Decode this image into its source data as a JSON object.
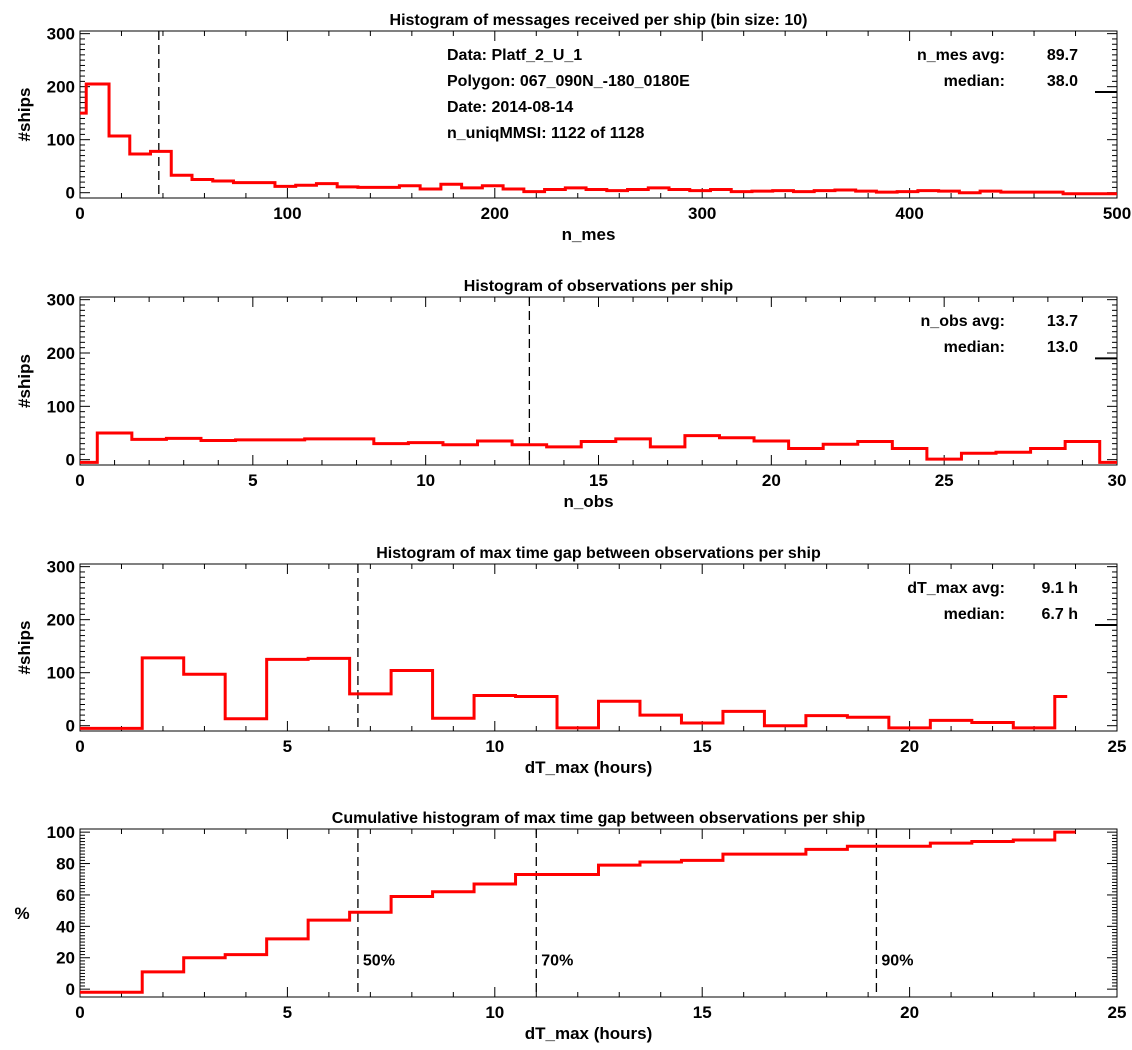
{
  "chart_data": [
    {
      "type": "line",
      "title": "Histogram of messages received per ship (bin size: 10)",
      "xlabel": "n_mes",
      "ylabel": "#ships",
      "xlim": [
        0,
        500
      ],
      "ylim": [
        -10,
        305
      ],
      "xticks": [
        0,
        100,
        200,
        300,
        400,
        500
      ],
      "yticks": [
        0,
        100,
        200,
        300
      ],
      "series": [
        {
          "color": "#ff0000",
          "steps": [
            [
              0,
              150
            ],
            [
              3,
              205
            ],
            [
              14,
              107
            ],
            [
              24,
              73
            ],
            [
              34,
              78
            ],
            [
              44,
              33
            ],
            [
              54,
              25
            ],
            [
              64,
              22
            ],
            [
              74,
              19
            ],
            [
              84,
              19
            ],
            [
              94,
              12
            ],
            [
              104,
              14
            ],
            [
              114,
              17
            ],
            [
              124,
              11
            ],
            [
              134,
              10
            ],
            [
              144,
              10
            ],
            [
              154,
              13
            ],
            [
              164,
              7
            ],
            [
              174,
              16
            ],
            [
              184,
              9
            ],
            [
              194,
              13
            ],
            [
              204,
              7
            ],
            [
              214,
              2
            ],
            [
              224,
              6
            ],
            [
              234,
              9
            ],
            [
              244,
              6
            ],
            [
              254,
              4
            ],
            [
              264,
              6
            ],
            [
              274,
              9
            ],
            [
              284,
              6
            ],
            [
              294,
              4
            ],
            [
              304,
              6
            ],
            [
              314,
              2
            ],
            [
              324,
              3
            ],
            [
              334,
              4
            ],
            [
              344,
              2
            ],
            [
              354,
              4
            ],
            [
              364,
              5
            ],
            [
              374,
              3
            ],
            [
              384,
              1
            ],
            [
              394,
              2
            ],
            [
              404,
              4
            ],
            [
              414,
              3
            ],
            [
              424,
              0
            ],
            [
              434,
              3
            ],
            [
              444,
              1
            ],
            [
              454,
              1
            ],
            [
              464,
              1
            ],
            [
              474,
              -2
            ],
            [
              500,
              -2
            ]
          ]
        }
      ],
      "vlines": [
        {
          "x": 38
        }
      ],
      "annotations_left": [
        "Data: Platf_2_U_1",
        "Polygon: 067_090N_-180_0180E",
        "Date: 2014-08-14",
        "n_uniqMMSI:  1122 of 1128"
      ],
      "stats": [
        {
          "label": "n_mes avg:",
          "value": "89.7"
        },
        {
          "label": "median:",
          "value": "38.0"
        }
      ],
      "median_marker_y": 200
    },
    {
      "type": "line",
      "title": "Histogram of observations per ship",
      "xlabel": "n_obs",
      "ylabel": "#ships",
      "xlim": [
        0,
        30
      ],
      "ylim": [
        -10,
        305
      ],
      "xticks": [
        0,
        5,
        10,
        15,
        20,
        25,
        30
      ],
      "yticks": [
        0,
        100,
        200,
        300
      ],
      "series": [
        {
          "color": "#ff0000",
          "steps": [
            [
              0,
              -5
            ],
            [
              0.5,
              50
            ],
            [
              1.5,
              38
            ],
            [
              2.5,
              40
            ],
            [
              3.5,
              36
            ],
            [
              4.5,
              37
            ],
            [
              5.5,
              37
            ],
            [
              6.5,
              39
            ],
            [
              7.5,
              39
            ],
            [
              8.5,
              30
            ],
            [
              9.5,
              32
            ],
            [
              10.5,
              28
            ],
            [
              11.5,
              35
            ],
            [
              12.5,
              28
            ],
            [
              13.5,
              24
            ],
            [
              14.5,
              34
            ],
            [
              15.5,
              39
            ],
            [
              16.5,
              24
            ],
            [
              17.5,
              45
            ],
            [
              18.5,
              41
            ],
            [
              19.5,
              35
            ],
            [
              20.5,
              21
            ],
            [
              21.5,
              29
            ],
            [
              22.5,
              34
            ],
            [
              23.5,
              21
            ],
            [
              24.5,
              1
            ],
            [
              25.5,
              12
            ],
            [
              26.5,
              14
            ],
            [
              27.5,
              21
            ],
            [
              28.5,
              34
            ],
            [
              29.5,
              -5
            ],
            [
              30,
              -5
            ]
          ]
        }
      ],
      "vlines": [
        {
          "x": 13.0
        }
      ],
      "stats": [
        {
          "label": "n_obs avg:",
          "value": "13.7"
        },
        {
          "label": "median:",
          "value": "13.0"
        }
      ],
      "median_marker_y": 200
    },
    {
      "type": "line",
      "title": "Histogram of max time gap between observations per ship",
      "xlabel": "dT_max (hours)",
      "ylabel": "#ships",
      "xlim": [
        0,
        25
      ],
      "ylim": [
        -10,
        305
      ],
      "xticks": [
        0,
        5,
        10,
        15,
        20,
        25
      ],
      "yticks": [
        0,
        100,
        200,
        300
      ],
      "series": [
        {
          "color": "#ff0000",
          "steps": [
            [
              0,
              -5
            ],
            [
              1.5,
              128
            ],
            [
              2.5,
              97
            ],
            [
              3.5,
              13
            ],
            [
              4.5,
              125
            ],
            [
              5.5,
              127
            ],
            [
              6.5,
              60
            ],
            [
              7.5,
              104
            ],
            [
              8.5,
              14
            ],
            [
              9.5,
              57
            ],
            [
              10.5,
              55
            ],
            [
              11.5,
              -4
            ],
            [
              12.5,
              46
            ],
            [
              13.5,
              20
            ],
            [
              14.5,
              5
            ],
            [
              15.5,
              27
            ],
            [
              16.5,
              0
            ],
            [
              17.5,
              19
            ],
            [
              18.5,
              16
            ],
            [
              19.5,
              -4
            ],
            [
              20.5,
              10
            ],
            [
              21.5,
              6
            ],
            [
              22.5,
              -4
            ],
            [
              23.5,
              55
            ],
            [
              23.8,
              55
            ]
          ]
        }
      ],
      "vlines": [
        {
          "x": 6.7
        }
      ],
      "stats": [
        {
          "label": "dT_max avg:",
          "value": "9.1 h"
        },
        {
          "label": "median:",
          "value": "6.7 h"
        }
      ],
      "median_marker_y": 200
    },
    {
      "type": "line",
      "title": "Cumulative histogram of max time gap between observations per ship",
      "xlabel": "dT_max (hours)",
      "ylabel": "%",
      "xlim": [
        0,
        25
      ],
      "ylim": [
        -5,
        102
      ],
      "xticks": [
        0,
        5,
        10,
        15,
        20,
        25
      ],
      "yticks": [
        0,
        20,
        40,
        60,
        80,
        100
      ],
      "series": [
        {
          "color": "#ff0000",
          "steps": [
            [
              0,
              -2
            ],
            [
              1.5,
              11
            ],
            [
              2.5,
              20
            ],
            [
              3.5,
              22
            ],
            [
              4.5,
              32
            ],
            [
              5.5,
              44
            ],
            [
              6.5,
              49
            ],
            [
              7.5,
              59
            ],
            [
              8.5,
              62
            ],
            [
              9.5,
              67
            ],
            [
              10.5,
              73
            ],
            [
              11.5,
              73
            ],
            [
              12.5,
              79
            ],
            [
              13.5,
              81
            ],
            [
              14.5,
              82
            ],
            [
              15.5,
              86
            ],
            [
              16.5,
              86
            ],
            [
              17.5,
              89
            ],
            [
              18.5,
              91
            ],
            [
              19.5,
              91
            ],
            [
              20.5,
              93
            ],
            [
              21.5,
              94
            ],
            [
              22.5,
              95
            ],
            [
              23.5,
              100
            ],
            [
              24,
              100
            ]
          ]
        }
      ],
      "vlines": [
        {
          "x": 6.7,
          "label": "50%"
        },
        {
          "x": 11.0,
          "label": "70%"
        },
        {
          "x": 19.2,
          "label": "90%"
        }
      ]
    }
  ]
}
